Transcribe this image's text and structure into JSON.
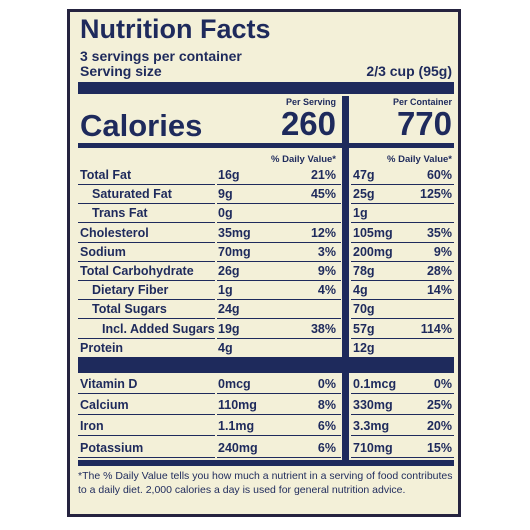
{
  "title": "Nutrition Facts",
  "servings": "3 servings per container",
  "serving_size": {
    "label": "Serving size",
    "value": "2/3 cup (95g)"
  },
  "calories": {
    "label": "Calories",
    "per_serving": {
      "header": "Per Serving",
      "value": "260"
    },
    "per_container": {
      "header": "Per Container",
      "value": "770"
    }
  },
  "daily_value_header": "% Daily Value*",
  "rows": [
    {
      "name": "Total Fat",
      "serving_amount": "16g",
      "serving_dv": "21%",
      "container_amount": "47g",
      "container_dv": "60%"
    },
    {
      "name": "Saturated Fat",
      "serving_amount": "9g",
      "serving_dv": "45%",
      "container_amount": "25g",
      "container_dv": "125%"
    },
    {
      "name": "Trans Fat",
      "serving_amount": "0g",
      "container_amount": "1g"
    },
    {
      "name": "Cholesterol",
      "serving_amount": "35mg",
      "serving_dv": "12%",
      "container_amount": "105mg",
      "container_dv": "35%"
    },
    {
      "name": "Sodium",
      "serving_amount": "70mg",
      "serving_dv": "3%",
      "container_amount": "200mg",
      "container_dv": "9%"
    },
    {
      "name": "Total Carbohydrate",
      "serving_amount": "26g",
      "serving_dv": "9%",
      "container_amount": "78g",
      "container_dv": "28%"
    },
    {
      "name": "Dietary Fiber",
      "serving_amount": "1g",
      "serving_dv": "4%",
      "container_amount": "4g",
      "container_dv": "14%"
    },
    {
      "name": "Total Sugars",
      "serving_amount": "24g",
      "container_amount": "70g"
    },
    {
      "name": "Incl. Added Sugars",
      "serving_amount": "19g",
      "serving_dv": "38%",
      "container_amount": "57g",
      "container_dv": "114%"
    },
    {
      "name": "Protein",
      "serving_amount": "4g",
      "container_amount": "12g"
    },
    {
      "name": "Vitamin D",
      "serving_amount": "0mcg",
      "serving_dv": "0%",
      "container_amount": "0.1mcg",
      "container_dv": "0%"
    },
    {
      "name": "Calcium",
      "serving_amount": "110mg",
      "serving_dv": "8%",
      "container_amount": "330mg",
      "container_dv": "25%"
    },
    {
      "name": "Iron",
      "serving_amount": "1.1mg",
      "serving_dv": "6%",
      "container_amount": "3.3mg",
      "container_dv": "20%"
    },
    {
      "name": "Potassium",
      "serving_amount": "240mg",
      "serving_dv": "6%",
      "container_amount": "710mg",
      "container_dv": "15%"
    }
  ],
  "footnote": "*The % Daily Value tells you how much a nutrient in a serving of food contributes to a daily diet. 2,000 calories a day is used for general nutrition advice."
}
